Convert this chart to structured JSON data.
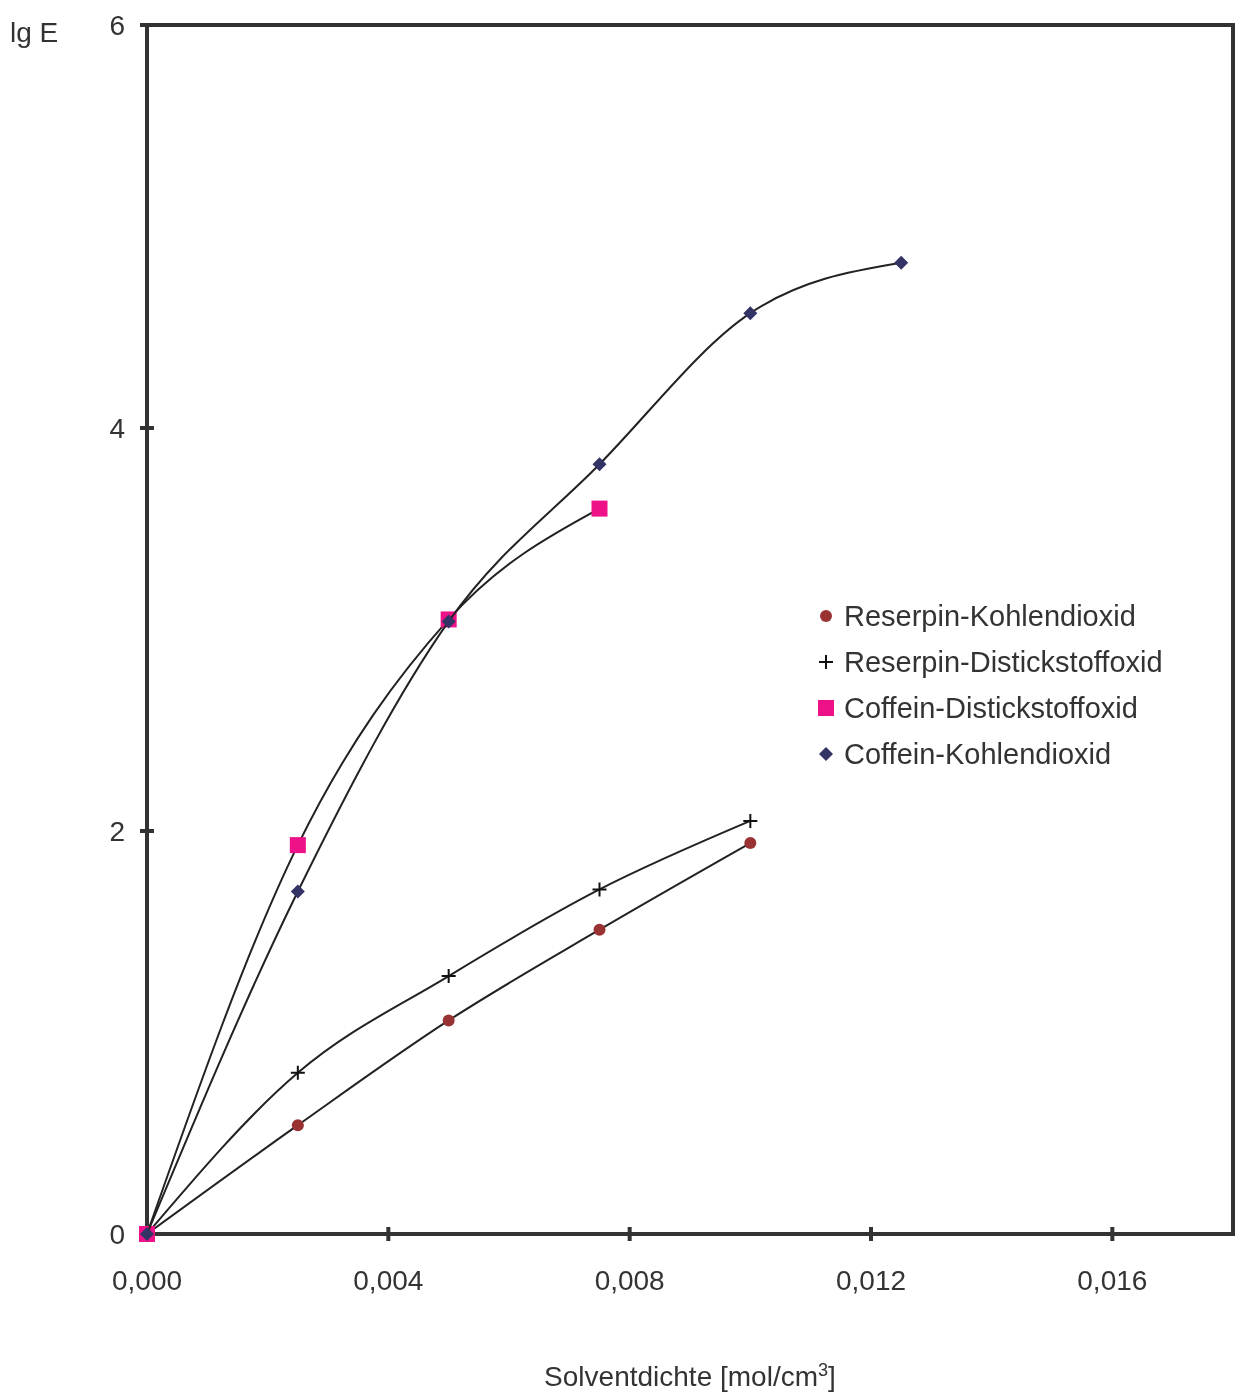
{
  "chart_data": {
    "type": "line",
    "xlabel": "Solventdichte [mol/cm$^{3}$]",
    "ylabel": "lg E",
    "xlim": [
      0,
      0.018
    ],
    "xticks": [
      {
        "value": 0,
        "label": "0,000"
      },
      {
        "value": 0.004,
        "label": "0,004"
      },
      {
        "value": 0.008,
        "label": "0,008"
      },
      {
        "value": 0.012,
        "label": "0,012"
      },
      {
        "value": 0.016,
        "label": "0,016"
      }
    ],
    "ylim": [
      0,
      6
    ],
    "yticks": [
      0,
      2,
      4,
      6
    ],
    "grid": false,
    "legend": "right",
    "line_style": "solid",
    "series": [
      {
        "name": "Reserpin-Kohlendioxid",
        "color": "#993333",
        "marker": "circle",
        "x": [
          0,
          0.0025,
          0.005,
          0.0075,
          0.01
        ],
        "values": [
          0,
          0.54,
          1.06,
          1.51,
          1.94
        ]
      },
      {
        "name": "Reserpin-Distickstoffoxid",
        "color": "#111111",
        "marker": "cross",
        "x": [
          0,
          0.0025,
          0.005,
          0.0075,
          0.01
        ],
        "values": [
          0,
          0.8,
          1.28,
          1.71,
          2.05
        ]
      },
      {
        "name": "Coffein-Distickstoffoxid",
        "color": "#ee1188",
        "marker": "square",
        "x": [
          0,
          0.0025,
          0.005,
          0.0075
        ],
        "values": [
          0,
          1.93,
          3.05,
          3.6
        ]
      },
      {
        "name": "Coffein-Kohlendioxid",
        "color": "#333366",
        "marker": "diamond",
        "x": [
          0,
          0.0025,
          0.005,
          0.0075,
          0.01,
          0.0125
        ],
        "values": [
          0,
          1.7,
          3.04,
          3.82,
          4.57,
          4.82
        ]
      }
    ]
  }
}
